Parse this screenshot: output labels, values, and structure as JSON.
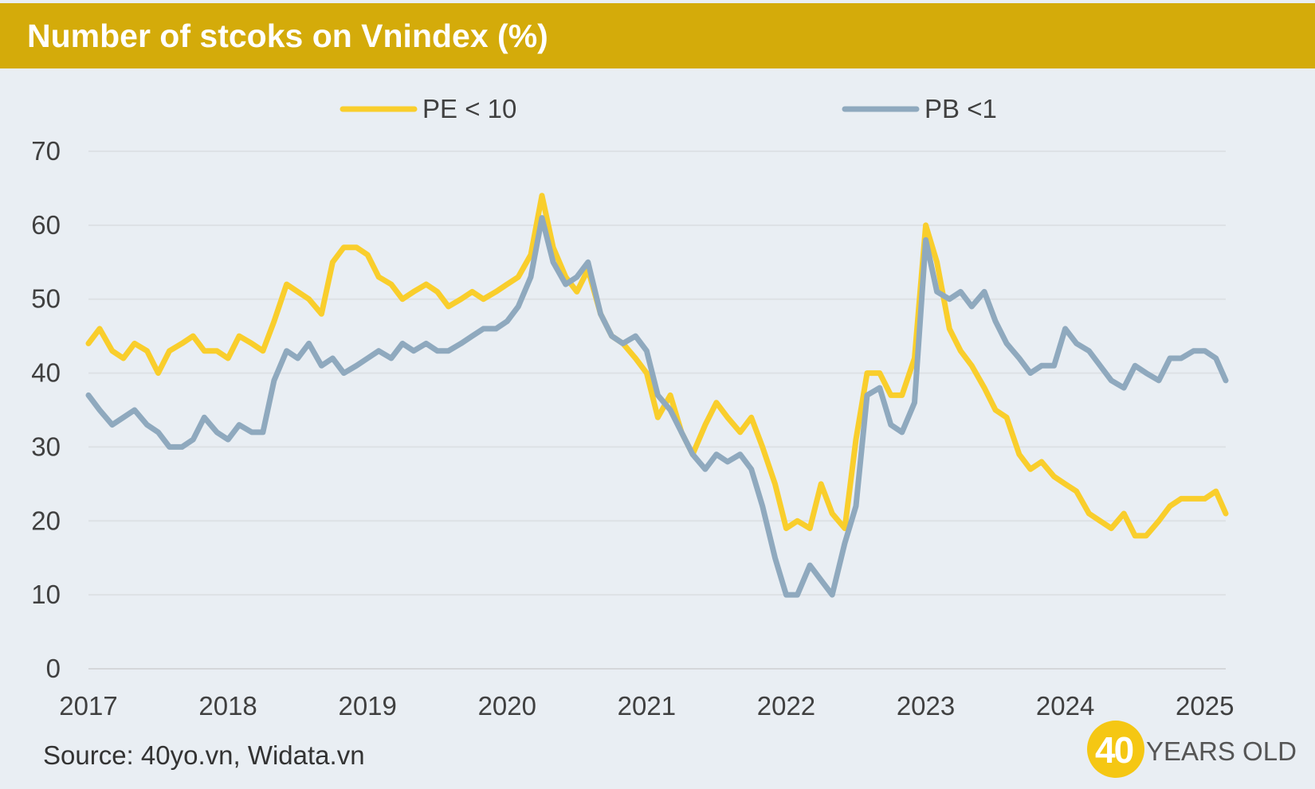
{
  "header": {
    "title": "Number of stcoks on Vnindex (%)",
    "background_color": "#d4ab0a"
  },
  "footer": {
    "source": "Source: 40yo.vn, Widata.vn",
    "logo_number": "40",
    "logo_text": "YEARS OLD"
  },
  "chart_data": {
    "type": "line",
    "title": "Number of stcoks on Vnindex (%)",
    "xlabel": "",
    "ylabel": "",
    "x_ticks": [
      "2017",
      "2018",
      "2019",
      "2020",
      "2021",
      "2022",
      "2023",
      "2024",
      "2025"
    ],
    "y_ticks": [
      "0",
      "10",
      "20",
      "30",
      "40",
      "50",
      "60",
      "70"
    ],
    "xlim": [
      2017.0,
      2025.15
    ],
    "ylim": [
      0,
      70
    ],
    "grid": true,
    "legend_position": "top",
    "x": [
      2017.0,
      2017.08,
      2017.17,
      2017.25,
      2017.33,
      2017.42,
      2017.5,
      2017.58,
      2017.67,
      2017.75,
      2017.83,
      2017.92,
      2018.0,
      2018.08,
      2018.17,
      2018.25,
      2018.33,
      2018.42,
      2018.5,
      2018.58,
      2018.67,
      2018.75,
      2018.83,
      2018.92,
      2019.0,
      2019.08,
      2019.17,
      2019.25,
      2019.33,
      2019.42,
      2019.5,
      2019.58,
      2019.67,
      2019.75,
      2019.83,
      2019.92,
      2020.0,
      2020.08,
      2020.17,
      2020.25,
      2020.33,
      2020.42,
      2020.5,
      2020.58,
      2020.67,
      2020.75,
      2020.83,
      2020.92,
      2021.0,
      2021.08,
      2021.17,
      2021.25,
      2021.33,
      2021.42,
      2021.5,
      2021.58,
      2021.67,
      2021.75,
      2021.83,
      2021.92,
      2022.0,
      2022.08,
      2022.17,
      2022.25,
      2022.33,
      2022.42,
      2022.5,
      2022.58,
      2022.67,
      2022.75,
      2022.83,
      2022.92,
      2023.0,
      2023.08,
      2023.17,
      2023.25,
      2023.33,
      2023.42,
      2023.5,
      2023.58,
      2023.67,
      2023.75,
      2023.83,
      2023.92,
      2024.0,
      2024.08,
      2024.17,
      2024.25,
      2024.33,
      2024.42,
      2024.5,
      2024.58,
      2024.67,
      2024.75,
      2024.83,
      2024.92,
      2025.0,
      2025.08,
      2025.15
    ],
    "series": [
      {
        "name": "PE < 10",
        "color": "#f9ce2c",
        "values": [
          44,
          46,
          43,
          42,
          44,
          43,
          40,
          43,
          44,
          45,
          43,
          43,
          42,
          45,
          44,
          43,
          47,
          52,
          51,
          50,
          48,
          55,
          57,
          57,
          56,
          53,
          52,
          50,
          51,
          52,
          51,
          49,
          50,
          51,
          50,
          51,
          52,
          53,
          56,
          64,
          57,
          53,
          51,
          54,
          48,
          45,
          44,
          42,
          40,
          34,
          37,
          32,
          29,
          33,
          36,
          34,
          32,
          34,
          30,
          25,
          19,
          20,
          19,
          25,
          21,
          19,
          31,
          40,
          40,
          37,
          37,
          42,
          60,
          55,
          46,
          43,
          41,
          38,
          35,
          34,
          29,
          27,
          28,
          26,
          25,
          24,
          21,
          20,
          19,
          21,
          18,
          18,
          20,
          22,
          23,
          23,
          23,
          24,
          21
        ]
      },
      {
        "name": "PB <1",
        "color": "#8fa9be",
        "values": [
          37,
          35,
          33,
          34,
          35,
          33,
          32,
          30,
          30,
          31,
          34,
          32,
          31,
          33,
          32,
          32,
          39,
          43,
          42,
          44,
          41,
          42,
          40,
          41,
          42,
          43,
          42,
          44,
          43,
          44,
          43,
          43,
          44,
          45,
          46,
          46,
          47,
          49,
          53,
          61,
          55,
          52,
          53,
          55,
          48,
          45,
          44,
          45,
          43,
          37,
          35,
          32,
          29,
          27,
          29,
          28,
          29,
          27,
          22,
          15,
          10,
          10,
          14,
          12,
          10,
          17,
          22,
          37,
          38,
          33,
          32,
          36,
          58,
          51,
          50,
          51,
          49,
          51,
          47,
          44,
          42,
          40,
          41,
          41,
          46,
          44,
          43,
          41,
          39,
          38,
          41,
          40,
          39,
          42,
          42,
          43,
          43,
          42,
          39
        ]
      }
    ]
  }
}
